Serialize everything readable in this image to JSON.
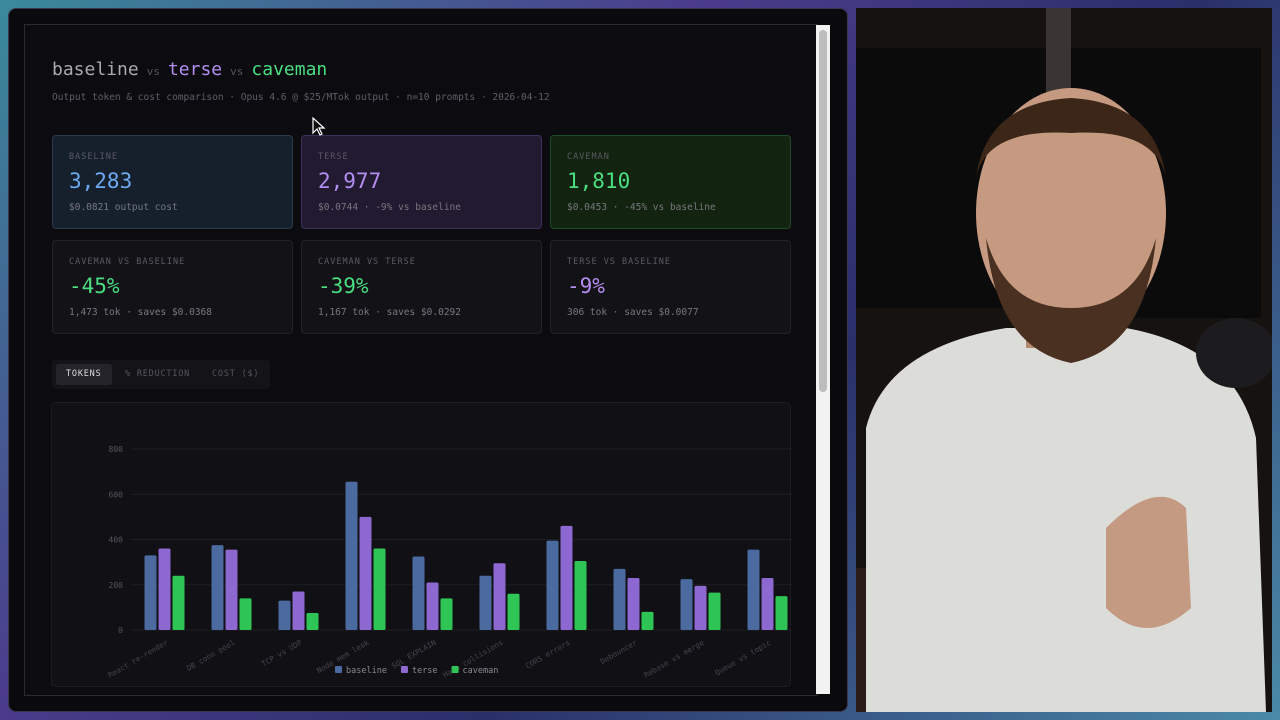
{
  "header": {
    "title": [
      "baseline",
      "vs",
      "terse",
      "vs",
      "caveman"
    ],
    "subtitle": "Output token & cost comparison · Opus 4.6 @ $25/MTok output · n=10 prompts · 2026-04-12"
  },
  "cards": [
    {
      "label": "BASELINE",
      "value": "3,283",
      "note": "$0.0821 output cost"
    },
    {
      "label": "TERSE",
      "value": "2,977",
      "note": "$0.0744 · -9% vs baseline"
    },
    {
      "label": "CAVEMAN",
      "value": "1,810",
      "note": "$0.0453 · -45% vs baseline"
    },
    {
      "label": "CAVEMAN VS BASELINE",
      "value": "-45%",
      "note": "1,473 tok · saves $0.0368"
    },
    {
      "label": "CAVEMAN VS TERSE",
      "value": "-39%",
      "note": "1,167 tok · saves $0.0292"
    },
    {
      "label": "TERSE VS BASELINE",
      "value": "-9%",
      "note": "306 tok · saves $0.0077"
    }
  ],
  "tabs": [
    "TOKENS",
    "% REDUCTION",
    "COST ($)"
  ],
  "chart_data": {
    "type": "bar",
    "categories": [
      "React re-render",
      "DB conn pool",
      "TCP vs UDP",
      "Node mem leak",
      "SQL EXPLAIN",
      "Hash collisions",
      "CORS errors",
      "Debouncer",
      "Rebase vs merge",
      "Queue vs topic"
    ],
    "series": [
      {
        "name": "baseline",
        "color": "#4a6aa0",
        "values": [
          330,
          375,
          130,
          655,
          325,
          240,
          395,
          270,
          225,
          355
        ]
      },
      {
        "name": "terse",
        "color": "#8c68d0",
        "values": [
          360,
          355,
          170,
          500,
          210,
          295,
          460,
          230,
          195,
          230
        ]
      },
      {
        "name": "caveman",
        "color": "#2fc556",
        "values": [
          240,
          140,
          75,
          360,
          140,
          160,
          305,
          80,
          165,
          150
        ]
      }
    ],
    "ylim": [
      0,
      800
    ],
    "yticks": [
      0,
      200,
      400,
      600,
      800
    ],
    "grid": true
  }
}
